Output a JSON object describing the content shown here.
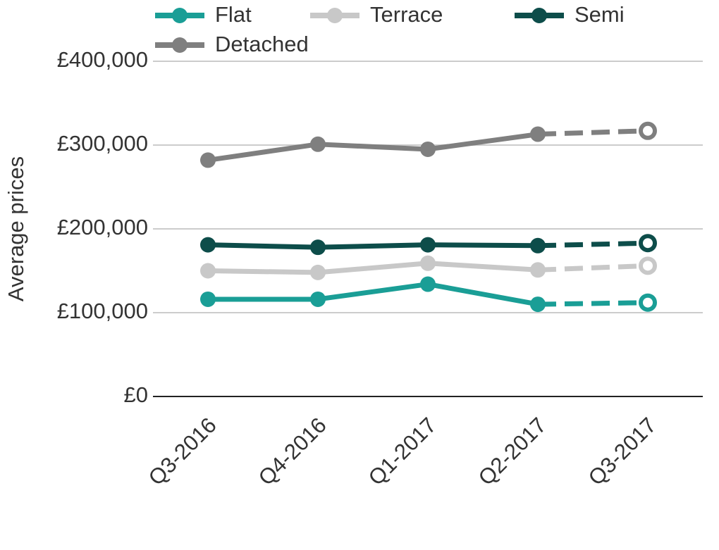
{
  "chart_data": {
    "type": "line",
    "y_label": "Average prices",
    "categories": [
      "Q3-2016",
      "Q4-2016",
      "Q1-2017",
      "Q2-2017",
      "Q3-2017"
    ],
    "series": [
      {
        "name": "Flat",
        "color": "#1a9e96",
        "values": [
          116000,
          116000,
          134000,
          110000,
          112000
        ]
      },
      {
        "name": "Terrace",
        "color": "#c8c8c8",
        "values": [
          150000,
          148000,
          159000,
          151000,
          156000
        ]
      },
      {
        "name": "Semi",
        "color": "#0d4d4a",
        "values": [
          181000,
          178000,
          181000,
          180000,
          183000
        ]
      },
      {
        "name": "Detached",
        "color": "#7f7f7f",
        "values": [
          282000,
          301000,
          295000,
          313000,
          317000
        ]
      }
    ],
    "ylim": [
      0,
      400000
    ],
    "yticks": [
      {
        "value": 0,
        "label": "£0"
      },
      {
        "value": 100000,
        "label": "£100,000"
      },
      {
        "value": 200000,
        "label": "£200,000"
      },
      {
        "value": 300000,
        "label": "£300,000"
      },
      {
        "value": 400000,
        "label": "£400,000"
      }
    ],
    "grid": true,
    "legend": "top",
    "last_point_projected": true
  }
}
